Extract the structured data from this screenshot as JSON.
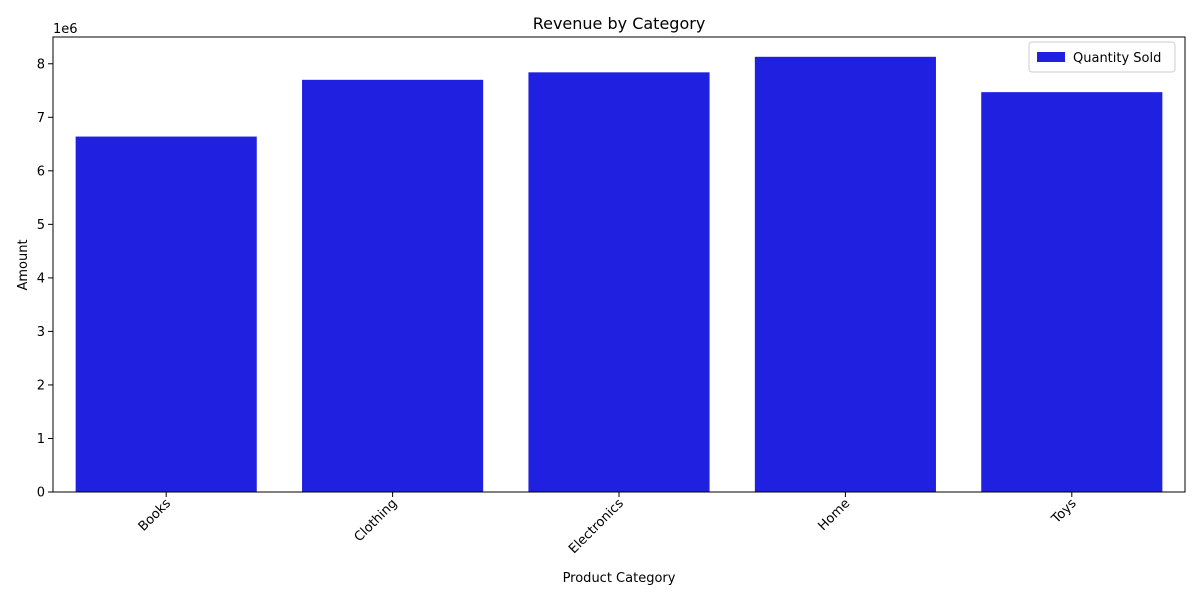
{
  "chart_data": {
    "type": "bar",
    "title": "Revenue by Category",
    "xlabel": "Product Category",
    "ylabel": "Amount",
    "y_offset_label": "1e6",
    "categories": [
      "Books",
      "Clothing",
      "Electronics",
      "Home",
      "Toys"
    ],
    "series": [
      {
        "name": "Quantity Sold",
        "color": "#2020e0",
        "values": [
          6640000,
          7700000,
          7840000,
          8130000,
          7470000
        ]
      }
    ],
    "ylim": [
      0,
      8500000
    ],
    "y_ticks": [
      0,
      1000000,
      2000000,
      3000000,
      4000000,
      5000000,
      6000000,
      7000000,
      8000000
    ],
    "y_tick_labels": [
      "0",
      "1",
      "2",
      "3",
      "4",
      "5",
      "6",
      "7",
      "8"
    ],
    "x_tick_rotation": 45,
    "legend_position": "top-right",
    "grid": false
  }
}
